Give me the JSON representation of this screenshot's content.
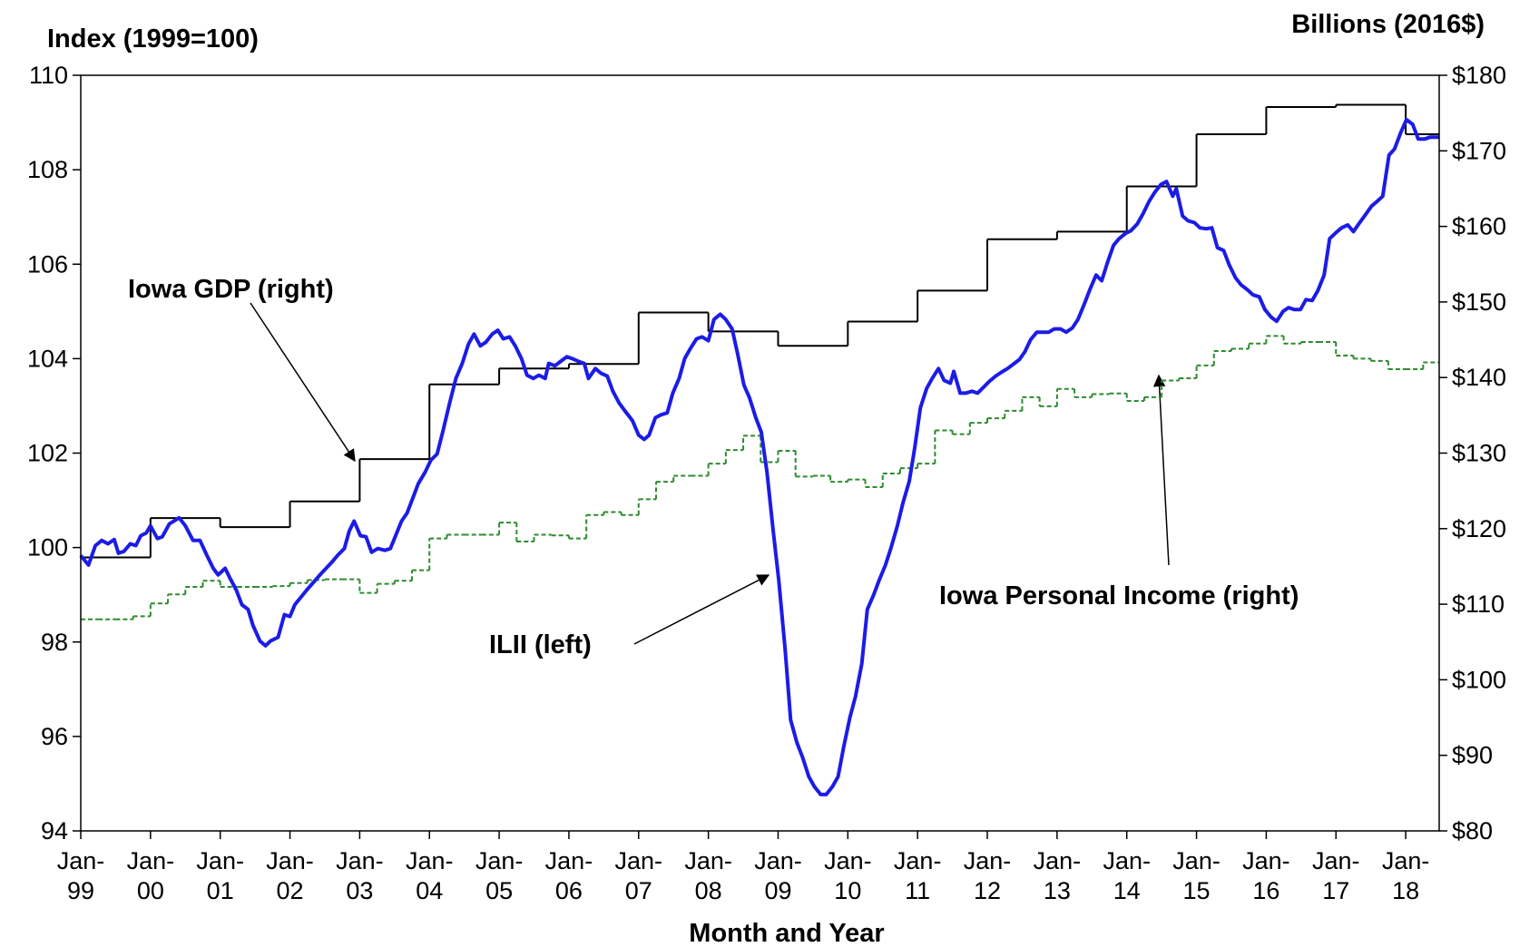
{
  "chart_data": {
    "type": "line",
    "y_label": "Index (1999=100)",
    "y2_label": "Billions (2016$)",
    "x_label": "Month and Year",
    "annotations": [
      {
        "text": "Iowa GDP (right)"
      },
      {
        "text": "ILII (left)"
      },
      {
        "text": "Iowa Personal Income (right)"
      }
    ],
    "xlim": [
      1999,
      2018.48
    ],
    "xticks": [
      {
        "value": 1999,
        "label": "Jan-99"
      },
      {
        "value": 2000,
        "label": "Jan-00"
      },
      {
        "value": 2001,
        "label": "Jan-01"
      },
      {
        "value": 2002,
        "label": "Jan-02"
      },
      {
        "value": 2003,
        "label": "Jan-03"
      },
      {
        "value": 2004,
        "label": "Jan-04"
      },
      {
        "value": 2005,
        "label": "Jan-05"
      },
      {
        "value": 2006,
        "label": "Jan-06"
      },
      {
        "value": 2007,
        "label": "Jan-07"
      },
      {
        "value": 2008,
        "label": "Jan-08"
      },
      {
        "value": 2009,
        "label": "Jan-09"
      },
      {
        "value": 2010,
        "label": "Jan-10"
      },
      {
        "value": 2011,
        "label": "Jan-11"
      },
      {
        "value": 2012,
        "label": "Jan-12"
      },
      {
        "value": 2013,
        "label": "Jan-13"
      },
      {
        "value": 2014,
        "label": "Jan-14"
      },
      {
        "value": 2015,
        "label": "Jan-15"
      },
      {
        "value": 2016,
        "label": "Jan-16"
      },
      {
        "value": 2017,
        "label": "Jan-17"
      },
      {
        "value": 2018,
        "label": "Jan-18"
      }
    ],
    "ylim": [
      94,
      110
    ],
    "yticks": [
      94,
      96,
      98,
      100,
      102,
      104,
      106,
      108,
      110
    ],
    "y2lim": [
      80,
      180
    ],
    "y2ticks": [
      {
        "value": 80,
        "label": "$80"
      },
      {
        "value": 90,
        "label": "$90"
      },
      {
        "value": 100,
        "label": "$100"
      },
      {
        "value": 110,
        "label": "$110"
      },
      {
        "value": 120,
        "label": "$120"
      },
      {
        "value": 130,
        "label": "$130"
      },
      {
        "value": 140,
        "label": "$140"
      },
      {
        "value": 150,
        "label": "$150"
      },
      {
        "value": 160,
        "label": "$160"
      },
      {
        "value": 170,
        "label": "$170"
      },
      {
        "value": 180,
        "label": "$180"
      }
    ],
    "grid": false,
    "series": [
      {
        "name": "ILII (left)",
        "color": "#1c1ce6",
        "style": "solid",
        "step": false,
        "x": [
          1999.0,
          1999.11,
          1999.21,
          1999.3,
          1999.39,
          1999.48,
          1999.54,
          1999.62,
          1999.71,
          1999.79,
          1999.86,
          1999.94,
          2000.0,
          2000.1,
          2000.17,
          2000.27,
          2000.41,
          2000.5,
          2000.61,
          2000.71,
          2000.81,
          2000.9,
          2000.97,
          2001.07,
          2001.14,
          2001.23,
          2001.31,
          2001.4,
          2001.47,
          2001.57,
          2001.65,
          2001.72,
          2001.83,
          2001.92,
          2002.0,
          2002.07,
          2002.24,
          2002.43,
          2002.6,
          2002.68,
          2002.78,
          2002.85,
          2002.92,
          2003.01,
          2003.09,
          2003.17,
          2003.26,
          2003.36,
          2003.44,
          2003.6,
          2003.68,
          2003.77,
          2003.84,
          2003.94,
          2004.02,
          2004.11,
          2004.19,
          2004.29,
          2004.38,
          2004.47,
          2004.56,
          2004.64,
          2004.73,
          2004.81,
          2004.9,
          2004.98,
          2005.06,
          2005.15,
          2005.23,
          2005.32,
          2005.4,
          2005.49,
          2005.57,
          2005.66,
          2005.71,
          2005.8,
          2005.88,
          2005.97,
          2006.05,
          2006.14,
          2006.22,
          2006.28,
          2006.38,
          2006.46,
          2006.55,
          2006.63,
          2006.72,
          2006.8,
          2006.91,
          2007.0,
          2007.08,
          2007.15,
          2007.24,
          2007.32,
          2007.41,
          2007.49,
          2007.58,
          2007.66,
          2007.74,
          2007.83,
          2007.91,
          2008.0,
          2008.08,
          2008.17,
          2008.25,
          2008.34,
          2008.42,
          2008.51,
          2008.59,
          2008.68,
          2008.76,
          2008.84,
          2008.93,
          2009.01,
          2009.1,
          2009.18,
          2009.27,
          2009.35,
          2009.44,
          2009.52,
          2009.61,
          2009.69,
          2009.78,
          2009.86,
          2009.94,
          2010.03,
          2010.11,
          2010.2,
          2010.28,
          2010.37,
          2010.45,
          2010.54,
          2010.62,
          2010.71,
          2010.79,
          2010.88,
          2010.96,
          2011.04,
          2011.13,
          2011.21,
          2011.3,
          2011.38,
          2011.47,
          2011.52,
          2011.61,
          2011.69,
          2011.78,
          2011.86,
          2011.95,
          2012.03,
          2012.12,
          2012.2,
          2012.29,
          2012.37,
          2012.46,
          2012.54,
          2012.62,
          2012.71,
          2012.79,
          2012.88,
          2012.96,
          2013.05,
          2013.13,
          2013.22,
          2013.3,
          2013.39,
          2013.47,
          2013.56,
          2013.64,
          2013.72,
          2013.81,
          2013.89,
          2013.98,
          2014.06,
          2014.15,
          2014.23,
          2014.32,
          2014.4,
          2014.49,
          2014.57,
          2014.66,
          2014.71,
          2014.8,
          2014.88,
          2014.97,
          2015.05,
          2015.14,
          2015.22,
          2015.3,
          2015.39,
          2015.47,
          2015.56,
          2015.64,
          2015.73,
          2015.81,
          2015.9,
          2015.98,
          2016.07,
          2016.15,
          2016.24,
          2016.32,
          2016.4,
          2016.49,
          2016.57,
          2016.66,
          2016.74,
          2016.83,
          2016.91,
          2017.0,
          2017.08,
          2017.17,
          2017.25,
          2017.34,
          2017.42,
          2017.51,
          2017.59,
          2017.67,
          2017.76,
          2017.84,
          2017.93,
          2018.01,
          2018.1,
          2018.18,
          2018.27,
          2018.35,
          2018.48
        ],
        "values": [
          99.83,
          99.63,
          100.04,
          100.15,
          100.08,
          100.17,
          99.88,
          99.92,
          100.08,
          100.04,
          100.25,
          100.31,
          100.46,
          100.19,
          100.23,
          100.5,
          100.63,
          100.46,
          100.15,
          100.15,
          99.83,
          99.56,
          99.42,
          99.56,
          99.35,
          99.1,
          98.79,
          98.69,
          98.35,
          98.02,
          97.92,
          98.02,
          98.1,
          98.58,
          98.54,
          98.79,
          99.1,
          99.42,
          99.69,
          99.83,
          99.98,
          100.35,
          100.56,
          100.25,
          100.23,
          99.9,
          99.98,
          99.94,
          99.98,
          100.56,
          100.73,
          101.08,
          101.35,
          101.6,
          101.85,
          101.98,
          102.44,
          103.06,
          103.58,
          103.9,
          104.31,
          104.52,
          104.27,
          104.35,
          104.52,
          104.6,
          104.42,
          104.46,
          104.27,
          104.0,
          103.65,
          103.58,
          103.65,
          103.58,
          103.9,
          103.85,
          103.94,
          104.04,
          104.0,
          103.94,
          103.9,
          103.58,
          103.79,
          103.69,
          103.63,
          103.31,
          103.06,
          102.9,
          102.69,
          102.38,
          102.29,
          102.38,
          102.75,
          102.81,
          102.85,
          103.27,
          103.58,
          104.0,
          104.21,
          104.42,
          104.46,
          104.38,
          104.83,
          104.94,
          104.83,
          104.63,
          104.1,
          103.44,
          103.17,
          102.75,
          102.44,
          101.6,
          100.35,
          99.31,
          97.85,
          96.35,
          95.87,
          95.56,
          95.15,
          94.94,
          94.77,
          94.77,
          94.94,
          95.15,
          95.77,
          96.4,
          96.85,
          97.54,
          98.69,
          99.0,
          99.31,
          99.63,
          100.0,
          100.46,
          100.94,
          101.4,
          102.12,
          102.96,
          103.37,
          103.58,
          103.79,
          103.54,
          103.48,
          103.73,
          103.27,
          103.27,
          103.31,
          103.27,
          103.4,
          103.52,
          103.63,
          103.71,
          103.79,
          103.88,
          103.98,
          104.15,
          104.4,
          104.56,
          104.56,
          104.56,
          104.63,
          104.63,
          104.56,
          104.65,
          104.83,
          105.15,
          105.46,
          105.77,
          105.65,
          106.02,
          106.4,
          106.54,
          106.65,
          106.71,
          106.85,
          107.06,
          107.33,
          107.52,
          107.69,
          107.75,
          107.44,
          107.6,
          107.02,
          106.92,
          106.88,
          106.77,
          106.75,
          106.77,
          106.35,
          106.29,
          105.98,
          105.71,
          105.56,
          105.46,
          105.35,
          105.31,
          105.04,
          104.88,
          104.79,
          105.0,
          105.08,
          105.04,
          105.04,
          105.25,
          105.23,
          105.44,
          105.77,
          106.54,
          106.67,
          106.77,
          106.83,
          106.69,
          106.88,
          107.04,
          107.23,
          107.33,
          107.44,
          108.31,
          108.44,
          108.79,
          109.06,
          108.96,
          108.65,
          108.65,
          108.69,
          108.69
        ]
      },
      {
        "name": "Iowa GDP (right)",
        "color": "#000000",
        "style": "solid",
        "step": true,
        "axis": "y2",
        "x": [
          1999,
          2000,
          2001,
          2002,
          2003,
          2004,
          2005,
          2006,
          2007,
          2008,
          2009,
          2010,
          2011,
          2012,
          2013,
          2014,
          2015,
          2016,
          2017,
          2018
        ],
        "values": [
          116.2,
          121.4,
          120.2,
          123.6,
          129.2,
          139.1,
          141.2,
          141.8,
          148.6,
          146.1,
          144.2,
          147.4,
          151.5,
          158.3,
          159.3,
          165.3,
          172.2,
          175.8,
          176.1,
          172.2
        ]
      },
      {
        "name": "Iowa Personal Income (right)",
        "color": "#2e8b2e",
        "style": "dashed",
        "step": true,
        "axis": "y2",
        "x": [
          1999,
          1999.25,
          1999.5,
          1999.75,
          2000,
          2000.25,
          2000.5,
          2000.75,
          2001,
          2001.25,
          2001.5,
          2001.75,
          2002,
          2002.25,
          2002.5,
          2002.75,
          2003,
          2003.25,
          2003.5,
          2003.75,
          2004,
          2004.25,
          2004.5,
          2004.75,
          2005,
          2005.25,
          2005.5,
          2005.75,
          2006,
          2006.25,
          2006.5,
          2006.75,
          2007,
          2007.25,
          2007.5,
          2007.75,
          2008,
          2008.25,
          2008.5,
          2008.75,
          2009,
          2009.25,
          2009.5,
          2009.75,
          2010,
          2010.25,
          2010.5,
          2010.75,
          2011,
          2011.25,
          2011.5,
          2011.75,
          2012,
          2012.25,
          2012.5,
          2012.75,
          2013,
          2013.25,
          2013.5,
          2013.75,
          2014,
          2014.25,
          2014.5,
          2014.75,
          2015,
          2015.25,
          2015.5,
          2015.75,
          2016,
          2016.25,
          2016.5,
          2016.75,
          2017,
          2017.25,
          2017.5,
          2017.75,
          2018,
          2018.25
        ],
        "values": [
          108.0,
          108.0,
          108.0,
          108.4,
          110.1,
          111.3,
          112.3,
          113.1,
          112.3,
          112.3,
          112.3,
          112.4,
          112.8,
          113.2,
          113.3,
          113.3,
          111.5,
          112.7,
          113.1,
          114.5,
          118.7,
          119.2,
          119.2,
          119.2,
          120.8,
          118.3,
          119.2,
          119.1,
          118.7,
          121.8,
          122.2,
          121.8,
          123.9,
          126.2,
          127.0,
          127.0,
          128.6,
          130.4,
          132.3,
          128.8,
          130.3,
          126.9,
          127.0,
          126.2,
          126.5,
          125.5,
          127.3,
          128.0,
          128.6,
          133.0,
          132.5,
          134.0,
          134.6,
          135.6,
          137.4,
          136.2,
          138.5,
          137.4,
          137.8,
          137.9,
          136.9,
          137.4,
          139.6,
          139.9,
          141.6,
          143.5,
          143.8,
          144.5,
          145.5,
          144.5,
          144.7,
          144.7,
          142.9,
          142.5,
          142.2,
          141.1,
          141.1,
          142.0
        ]
      }
    ]
  }
}
